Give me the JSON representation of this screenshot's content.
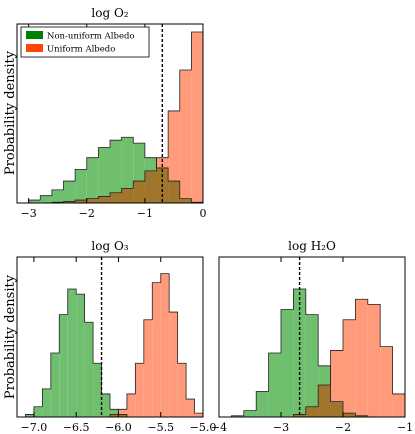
{
  "legend": {
    "placement": "top-left",
    "entries": [
      {
        "label": "Non-uniform Albedo",
        "color": "#008000"
      },
      {
        "label": "Uniform Albedo",
        "color": "#ff4500"
      }
    ]
  },
  "colors": {
    "nonuniform_fill": "#6fbf6f",
    "uniform_fill": "#ff9a7a",
    "overlap_fill": "#a0762c",
    "marker_line": "#000000"
  },
  "chart_data": [
    {
      "type": "histogram",
      "title": "log O₂",
      "ylabel": "Probability density",
      "xlim": [
        -3.2,
        0.0
      ],
      "xticks": [
        -3,
        -2,
        -1,
        0
      ],
      "xtick_labels": [
        "−3",
        "−2",
        "−1",
        "0"
      ],
      "y_ticks_visible": false,
      "marker_x": -0.7,
      "bin_edges": [
        -3.2,
        -3.0,
        -2.8,
        -2.6,
        -2.4,
        -2.2,
        -2.0,
        -1.8,
        -1.6,
        -1.4,
        -1.2,
        -1.0,
        -0.8,
        -0.6,
        -0.4,
        -0.2,
        0.0
      ],
      "series": [
        {
          "name": "Non-uniform Albedo",
          "values": [
            0.0,
            0.04,
            0.1,
            0.18,
            0.3,
            0.46,
            0.62,
            0.76,
            0.86,
            0.9,
            0.82,
            0.62,
            0.48,
            0.3,
            0.06,
            0.01
          ]
        },
        {
          "name": "Uniform Albedo",
          "values": [
            0.0,
            0.0,
            0.0,
            0.01,
            0.02,
            0.04,
            0.06,
            0.09,
            0.14,
            0.2,
            0.3,
            0.44,
            0.62,
            1.26,
            1.82,
            2.34
          ]
        }
      ]
    },
    {
      "type": "histogram",
      "title": "log O₃",
      "ylabel": "Probability density",
      "xlim": [
        -7.2,
        -5.0
      ],
      "xticks": [
        -7.0,
        -6.5,
        -6.0,
        -5.5,
        -5.0
      ],
      "xtick_labels": [
        "−7.0",
        "−6.5",
        "−6.0",
        "−5.5",
        "−5.0"
      ],
      "y_ticks_visible": false,
      "marker_x": -6.2,
      "bin_edges": [
        -7.2,
        -7.1,
        -7.0,
        -6.9,
        -6.8,
        -6.7,
        -6.6,
        -6.5,
        -6.4,
        -6.3,
        -6.2,
        -6.1,
        -6.0,
        -5.9,
        -5.8,
        -5.7,
        -5.6,
        -5.5,
        -5.4,
        -5.3,
        -5.2,
        -5.1,
        -5.0
      ],
      "series": [
        {
          "name": "Non-uniform Albedo",
          "values": [
            0.0,
            0.02,
            0.08,
            0.22,
            0.5,
            0.8,
            1.0,
            0.96,
            0.74,
            0.42,
            0.18,
            0.06,
            0.02,
            0.0,
            0.0,
            0.0,
            0.0,
            0.0,
            0.0,
            0.0,
            0.0,
            0.0
          ]
        },
        {
          "name": "Uniform Albedo",
          "values": [
            0.0,
            0.0,
            0.0,
            0.0,
            0.0,
            0.0,
            0.0,
            0.0,
            0.0,
            0.0,
            0.0,
            0.02,
            0.06,
            0.18,
            0.42,
            0.76,
            1.05,
            1.12,
            0.82,
            0.42,
            0.14,
            0.03
          ]
        }
      ]
    },
    {
      "type": "histogram",
      "title": "log H₂O",
      "ylabel": "",
      "xlim": [
        -4.0,
        -1.0
      ],
      "xticks": [
        -4,
        -3,
        -2,
        -1
      ],
      "xtick_labels": [
        "−4",
        "−3",
        "−2",
        "−1"
      ],
      "y_ticks_visible": false,
      "marker_x": -2.7,
      "bin_edges": [
        -4.0,
        -3.8,
        -3.6,
        -3.4,
        -3.2,
        -3.0,
        -2.8,
        -2.6,
        -2.4,
        -2.2,
        -2.0,
        -1.8,
        -1.6,
        -1.4,
        -1.2,
        -1.0
      ],
      "series": [
        {
          "name": "Non-uniform Albedo",
          "values": [
            0.0,
            0.01,
            0.05,
            0.2,
            0.5,
            0.84,
            1.0,
            0.8,
            0.4,
            0.12,
            0.03,
            0.01,
            0.0,
            0.0,
            0.0
          ]
        },
        {
          "name": "Uniform Albedo",
          "values": [
            0.0,
            0.0,
            0.0,
            0.0,
            0.0,
            0.0,
            0.02,
            0.08,
            0.25,
            0.52,
            0.76,
            0.92,
            0.88,
            0.55,
            0.18
          ]
        }
      ]
    }
  ]
}
